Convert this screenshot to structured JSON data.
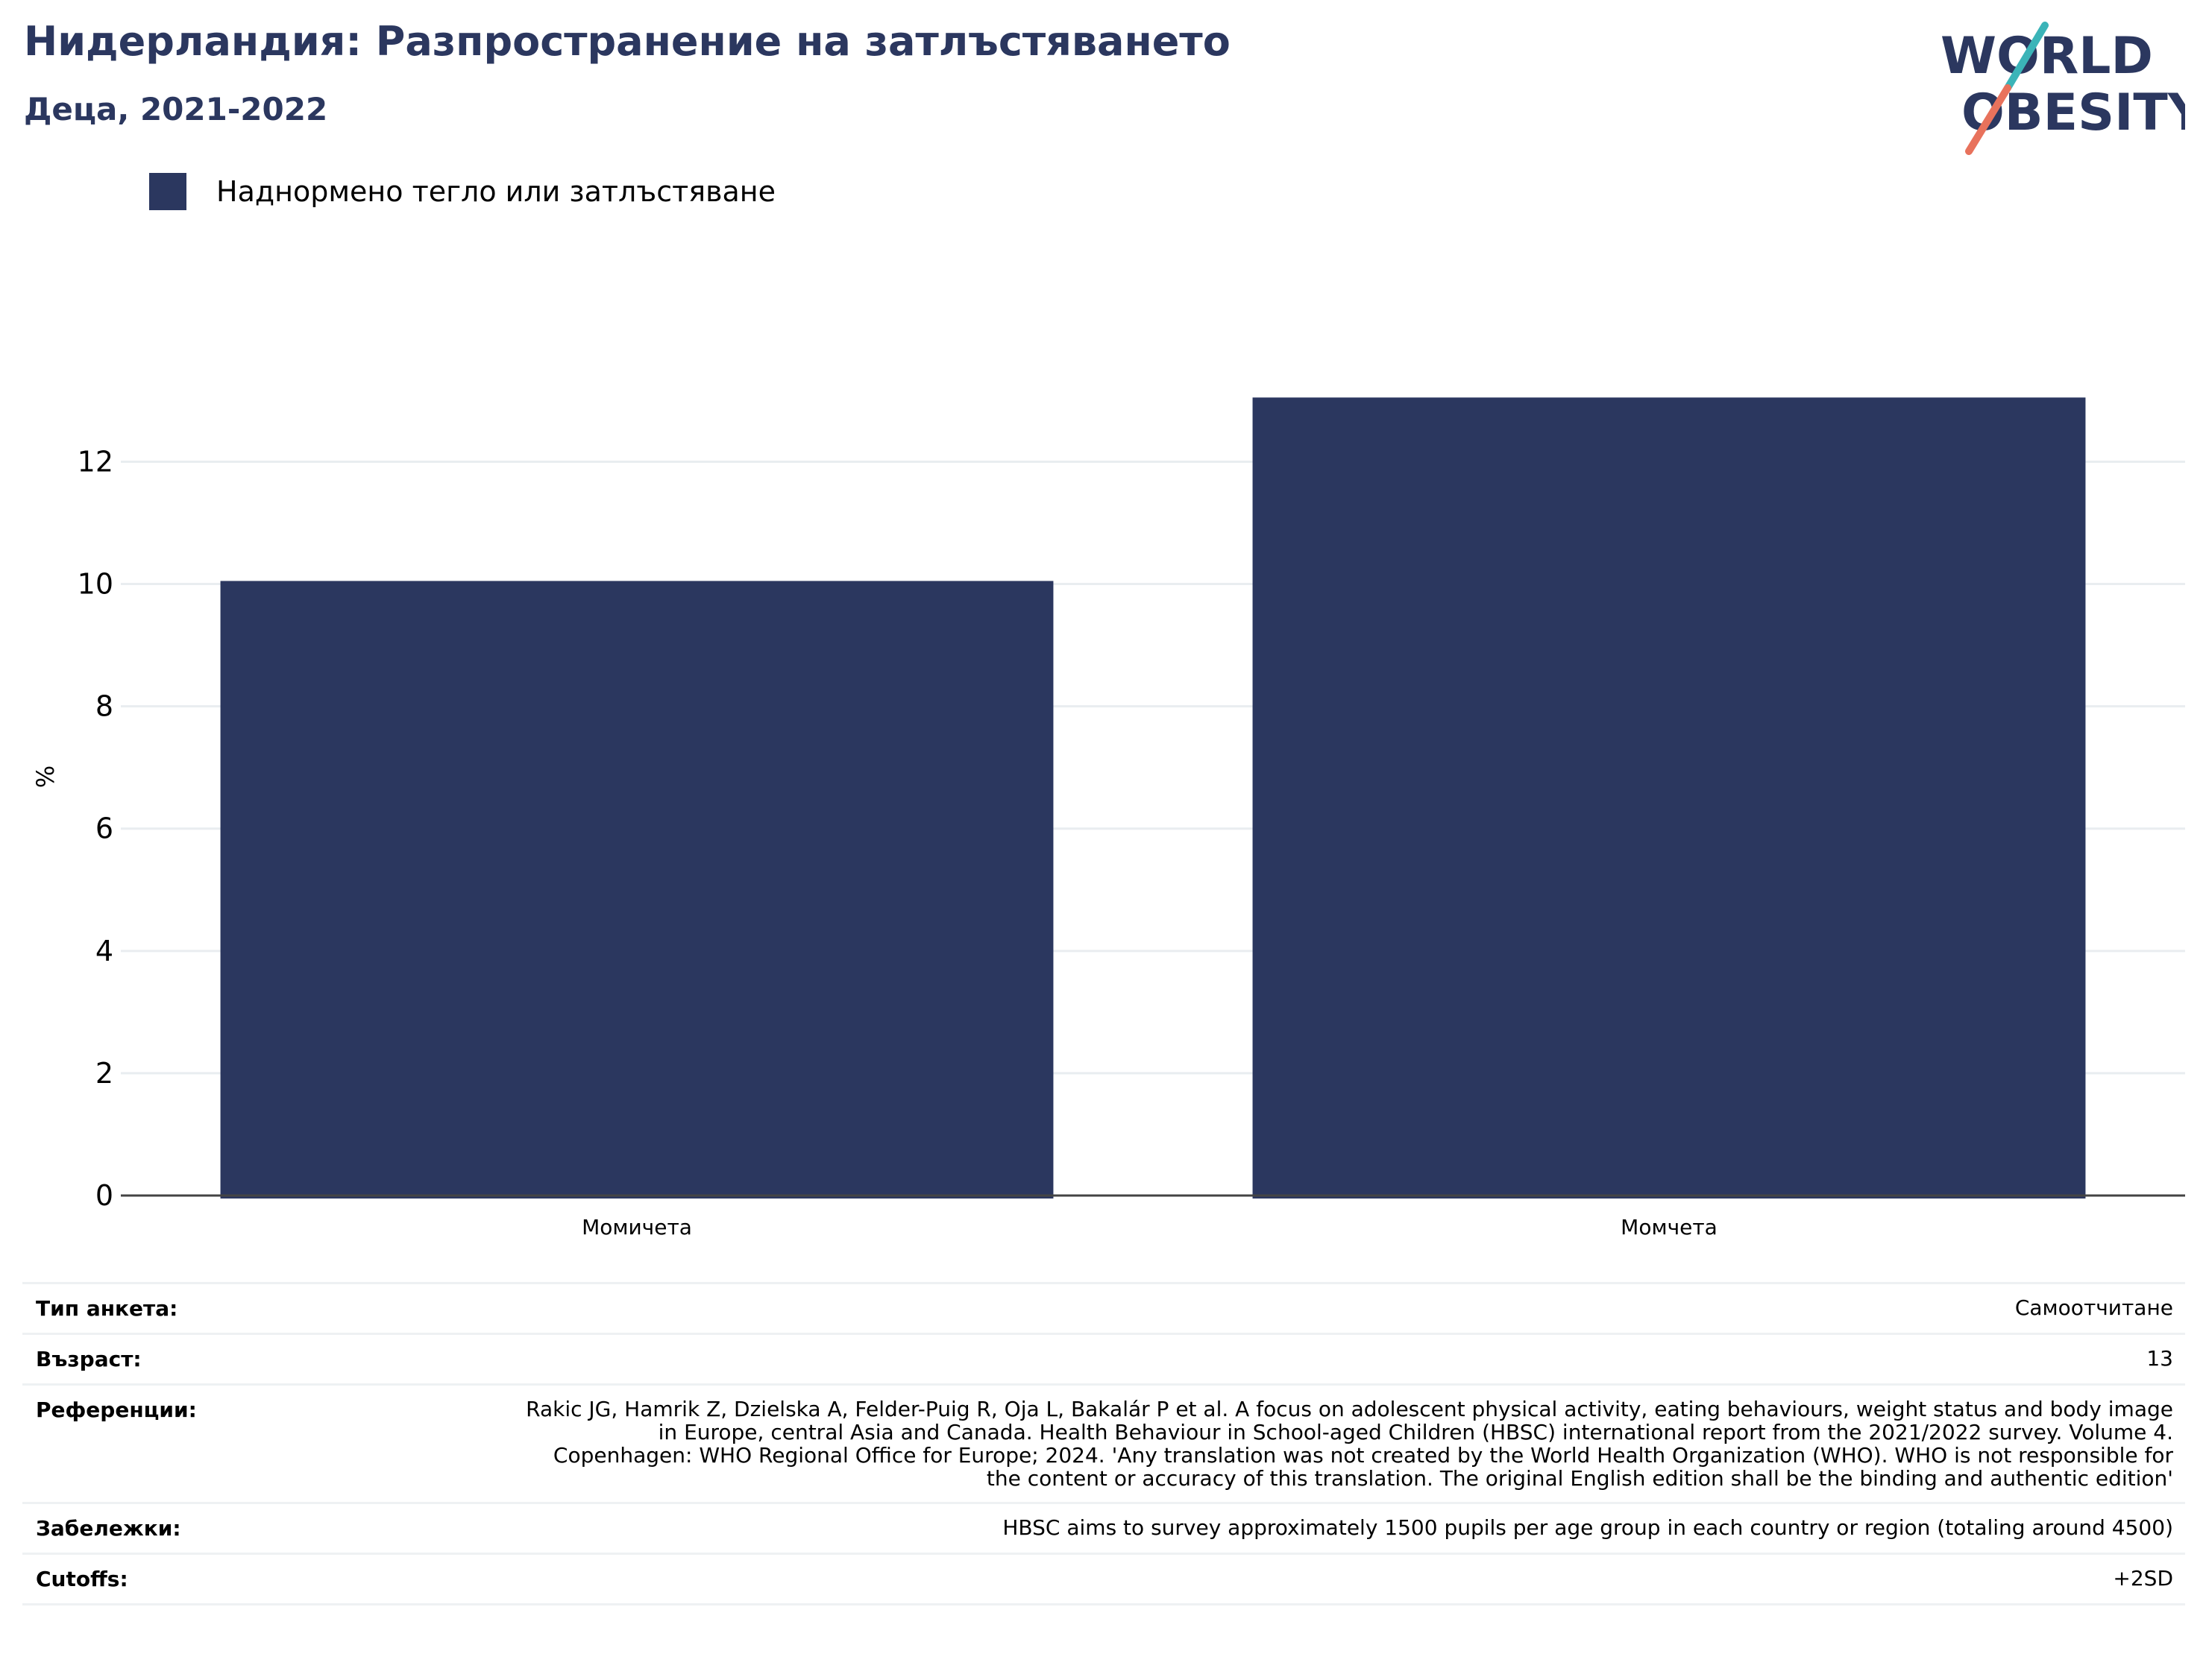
{
  "header": {
    "title": "Нидерландия: Разпространение на затлъстяването",
    "subtitle": "Деца, 2021-2022"
  },
  "logo": {
    "line1": "WORLD",
    "line2": "OBESITY",
    "colors": {
      "text": "#2b375f",
      "slash_top": "#3bb4b8",
      "slash_bottom": "#e8725c"
    }
  },
  "legend": {
    "items": [
      {
        "label": "Наднормено тегло или затлъстяване",
        "color": "#2b375f"
      }
    ]
  },
  "chart_data": {
    "type": "bar",
    "categories": [
      "Момичета",
      "Момчета"
    ],
    "series": [
      {
        "name": "Наднормено тегло или затлъстяване",
        "values": [
          10.05,
          13.05
        ],
        "color": "#2b375f"
      }
    ],
    "ylabel": "%",
    "xlabel": "",
    "ylim": [
      0,
      13.7
    ],
    "yticks": [
      0,
      2,
      4,
      6,
      8,
      10,
      12
    ],
    "grid": true
  },
  "info": {
    "rows": [
      {
        "key": "Тип анкета:",
        "value": "Самоотчитане"
      },
      {
        "key": "Възраст:",
        "value": "13"
      },
      {
        "key": "Референции:",
        "value": "Rakic JG, Hamrik Z, Dzielska A, Felder-Puig R, Oja L, Bakalár P et al. A focus on adolescent physical activity, eating behaviours, weight status and body image in Europe, central Asia and Canada. Health Behaviour in School-aged Children (HBSC) international report from the 2021/2022 survey. Volume 4. Copenhagen: WHO Regional Office for Europe; 2024. 'Any translation was not created by the World Health Organization (WHO). WHO is not responsible for the content or accuracy of this translation. The original English edition shall be the binding and authentic edition'"
      },
      {
        "key": "Забележки:",
        "value": "HBSC aims to survey approximately 1500 pupils per age group in each country or region (totaling around 4500)"
      },
      {
        "key": "Cutoffs:",
        "value": "+2SD"
      }
    ]
  }
}
